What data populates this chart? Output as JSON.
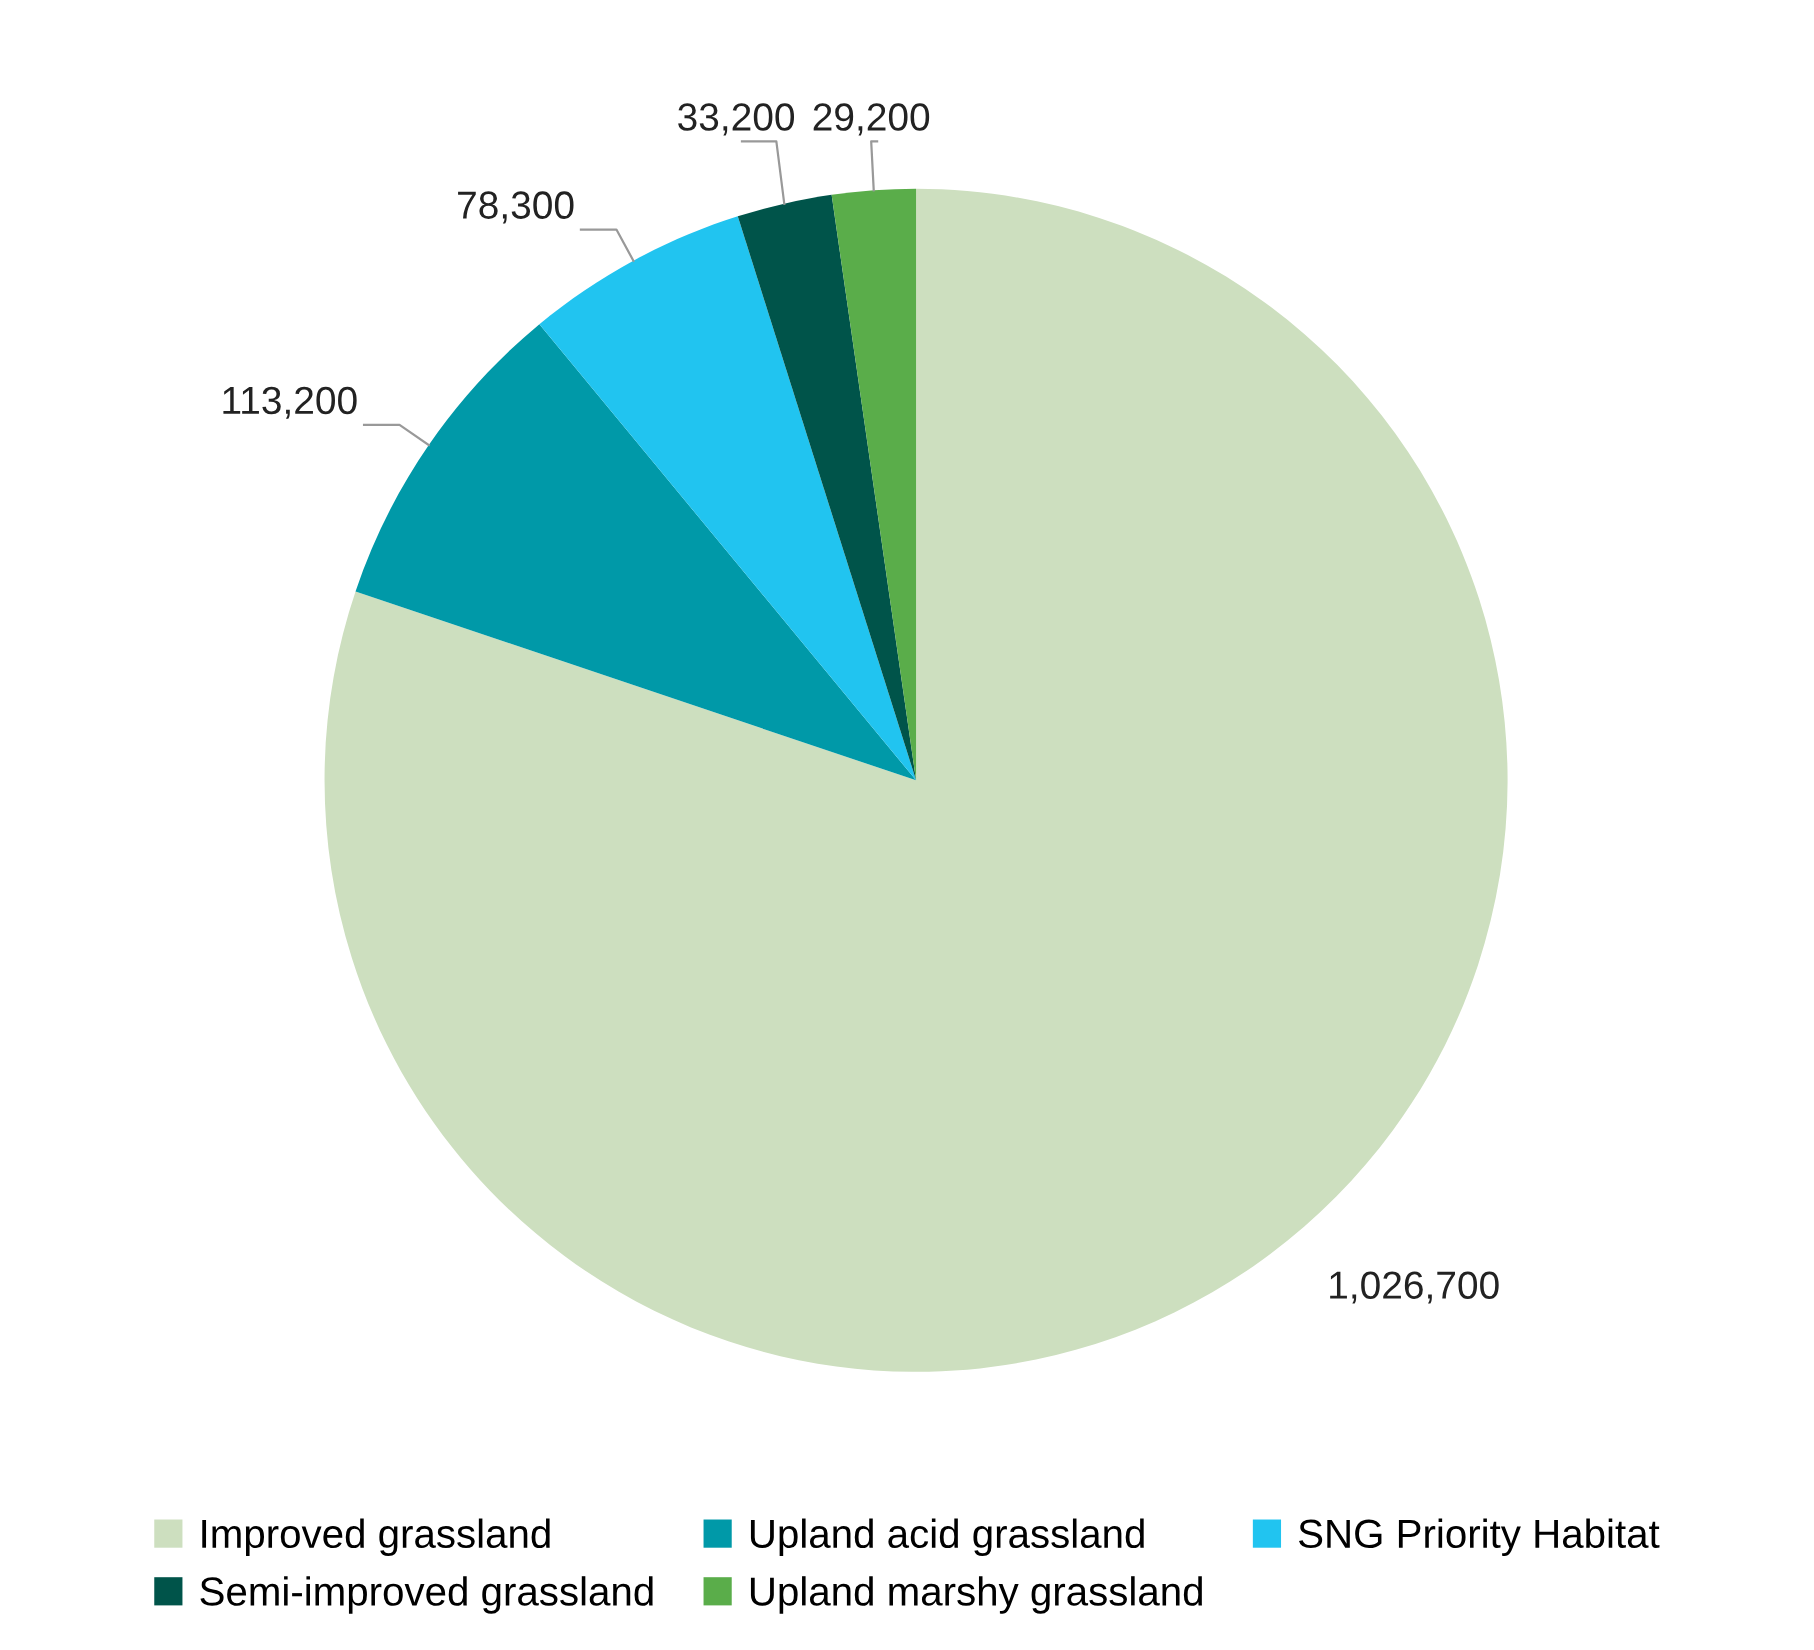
{
  "chart_data": {
    "type": "pie",
    "categories": [
      "Improved grassland",
      "Upland acid grassland",
      "SNG Priority Habitat",
      "Semi-improved grassland",
      "Upland marshy grassland"
    ],
    "values": [
      1026700,
      113200,
      78300,
      33200,
      29200
    ],
    "colors": [
      "#cddfbf",
      "#0099a8",
      "#21c4f0",
      "#00544a",
      "#5aad4a"
    ],
    "value_labels": [
      "1,026,700",
      "113,200",
      "78,300",
      "33,200",
      "29,200"
    ],
    "legend": "bottom"
  }
}
